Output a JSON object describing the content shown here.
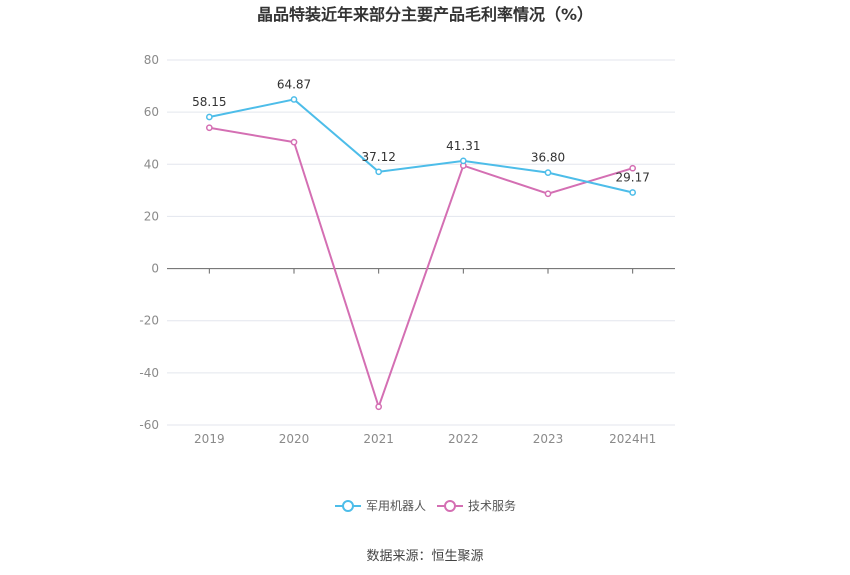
{
  "chart_data": {
    "type": "line",
    "title": "晶品特装近年来部分主要产品毛利率情况（%）",
    "categories": [
      "2019",
      "2020",
      "2021",
      "2022",
      "2023",
      "2024H1"
    ],
    "series": [
      {
        "name": "军用机器人",
        "color": "#4dbde9",
        "values": [
          58.15,
          64.87,
          37.12,
          41.31,
          36.8,
          29.17
        ],
        "labels": [
          "58.15",
          "64.87",
          "37.12",
          "41.31",
          "36.80",
          "29.17"
        ]
      },
      {
        "name": "技术服务",
        "color": "#d46fb3",
        "values": [
          54.0,
          48.5,
          -53.0,
          39.5,
          28.7,
          38.5
        ]
      }
    ],
    "ylim": [
      -60,
      80
    ],
    "yticks": [
      -60,
      -40,
      -20,
      0,
      20,
      40,
      60,
      80
    ],
    "grid": true,
    "legend": "bottom-center"
  },
  "source": "数据来源：恒生聚源"
}
